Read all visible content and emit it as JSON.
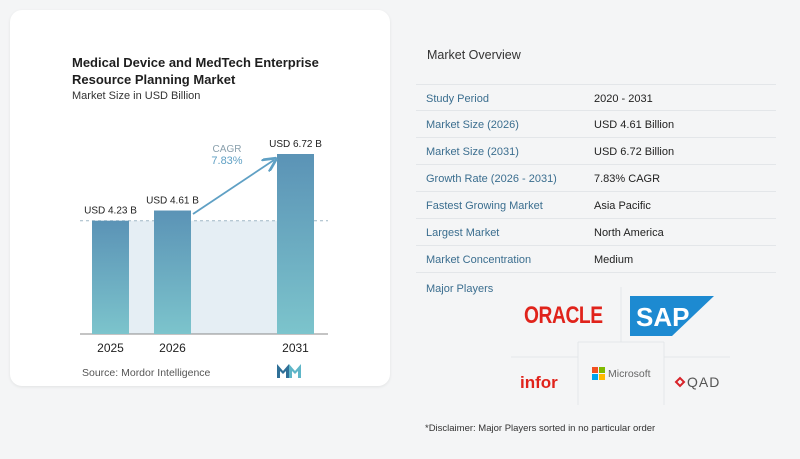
{
  "chart_data": {
    "type": "bar",
    "title": "Medical Device and MedTech Enterprise Resource Planning Market",
    "subtitle": "Market Size in USD Billion",
    "categories": [
      "2025",
      "2026",
      "2031"
    ],
    "values": [
      4.23,
      4.61,
      6.72
    ],
    "value_labels": [
      "USD 4.23 B",
      "USD 4.61 B",
      "USD 6.72 B"
    ],
    "cagr_label": "CAGR",
    "cagr_value": "7.83%",
    "ylim": [
      0,
      7.2
    ],
    "colors": {
      "bar_top": "#5b93b6",
      "bar_bottom": "#7cc4cc",
      "arrow": "#5fa0c4",
      "band": "#e5eef4"
    }
  },
  "source": "Source: Mordor Intelligence",
  "overview": {
    "title": "Market Overview",
    "rows": [
      {
        "key": "Study Period",
        "value": "2020 - 2031"
      },
      {
        "key": "Market Size (2026)",
        "value": "USD 4.61 Billion"
      },
      {
        "key": "Market Size (2031)",
        "value": "USD 6.72 Billion"
      },
      {
        "key": "Growth Rate (2026 - 2031)",
        "value": "7.83% CAGR"
      },
      {
        "key": "Fastest Growing Market",
        "value": "Asia Pacific"
      },
      {
        "key": "Largest Market",
        "value": "North America"
      },
      {
        "key": "Market Concentration",
        "value": "Medium"
      }
    ]
  },
  "players": {
    "title": "Major Players",
    "logos": [
      "ORACLE",
      "SAP",
      "infor",
      "Microsoft",
      "QAD"
    ]
  },
  "disclaimer": "*Disclaimer: Major Players sorted in no particular order"
}
